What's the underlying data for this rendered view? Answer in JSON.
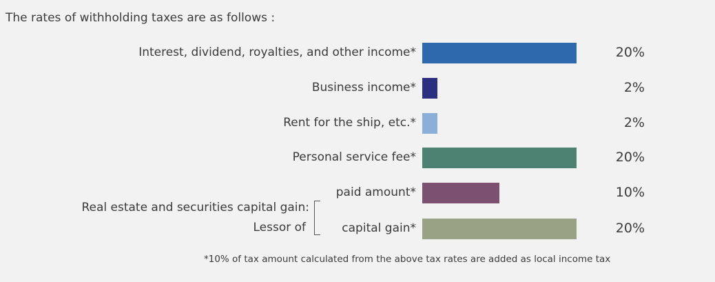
{
  "intro": "The rates of withholding taxes are as follows :",
  "group": {
    "line1": "Real estate and securities capital gain:",
    "line2": "Lessor of"
  },
  "footnote": "*10% of tax amount calculated from the above tax rates are added as local income tax",
  "chart_data": {
    "type": "bar",
    "orientation": "horizontal",
    "categories": [
      "Interest, dividend, royalties, and other income*",
      "Business income*",
      "Rent for the ship, etc.*",
      "Personal service fee*",
      "paid amount*",
      "capital gain*"
    ],
    "values": [
      20,
      2,
      2,
      20,
      10,
      20
    ],
    "value_labels": [
      "20%",
      "2%",
      "2%",
      "20%",
      "10%",
      "20%"
    ],
    "colors": [
      "#2f69ad",
      "#2b2f7f",
      "#8ab0d8",
      "#4d8273",
      "#7b5070",
      "#9aa286"
    ],
    "xlim": [
      0,
      20
    ],
    "grid": false
  }
}
